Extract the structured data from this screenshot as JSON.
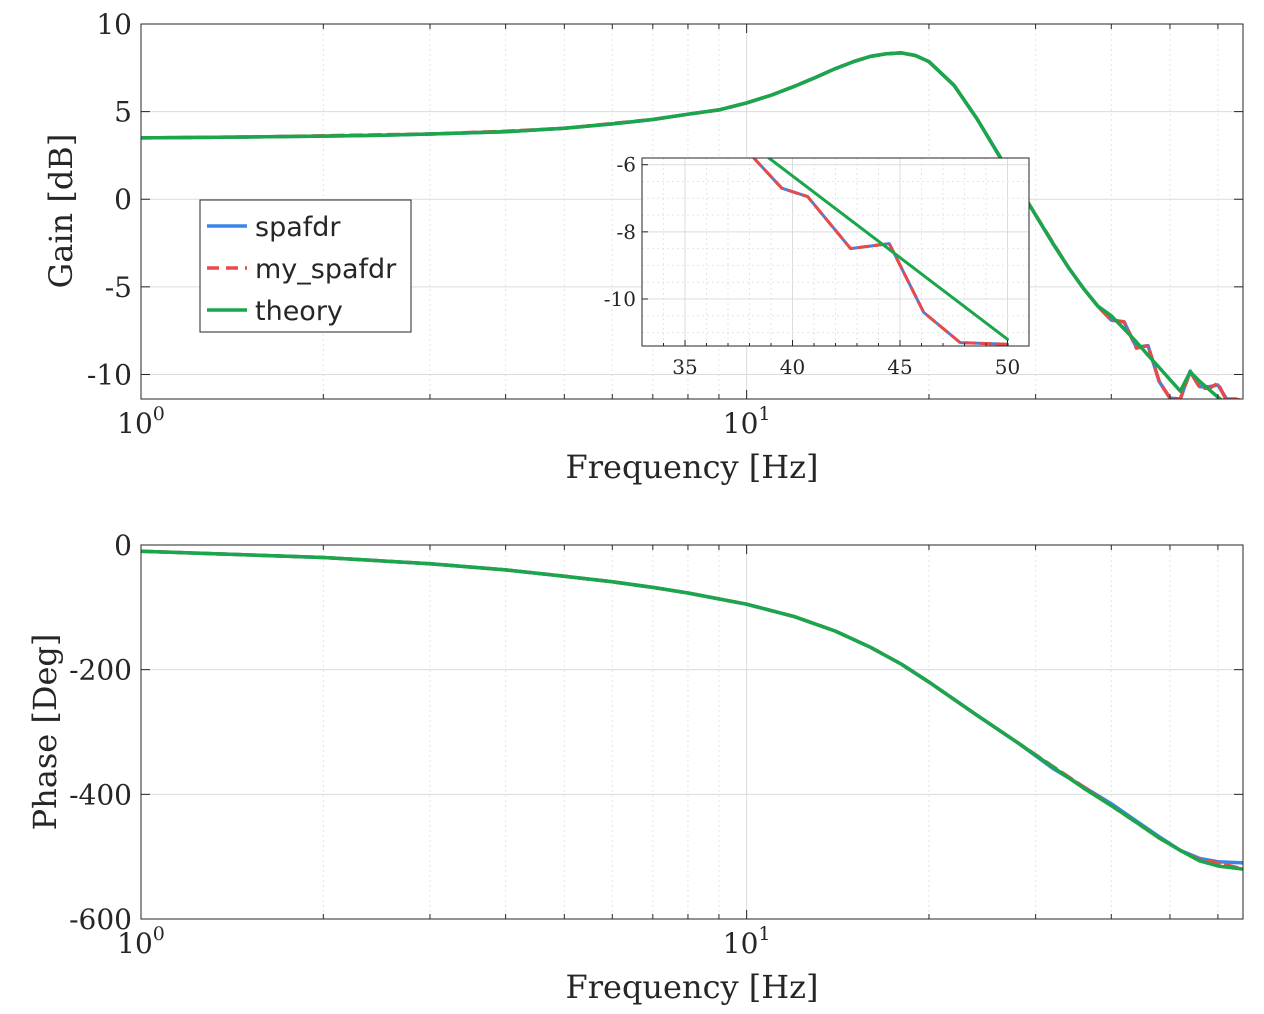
{
  "chart_data": [
    {
      "type": "line",
      "xlabel": "Frequency [Hz]",
      "ylabel": "Gain [dB]",
      "xscale": "log",
      "xlim": [
        1,
        66
      ],
      "ylim": [
        -11.4,
        10
      ],
      "xticks": [
        1,
        10
      ],
      "xtick_labels": [
        "10^0",
        "10^1"
      ],
      "yticks": [
        10,
        5,
        0,
        -5,
        -10
      ],
      "ytick_labels": [
        "10",
        "5",
        "0",
        "-5",
        "-10"
      ],
      "grid": true,
      "legend_position": "middle-left",
      "series": [
        {
          "name": "spafdr",
          "color": "#3a86e8",
          "style": "solid",
          "x": [
            1,
            1.5,
            2,
            2.5,
            3,
            4,
            5,
            6,
            7,
            8,
            9,
            10,
            11,
            12,
            13,
            14,
            15,
            16,
            17,
            18,
            19,
            20,
            22,
            24,
            26,
            28,
            30,
            32,
            34,
            36,
            38,
            40,
            42,
            44,
            46,
            48,
            50,
            52,
            54,
            56,
            58,
            60,
            62,
            64,
            66
          ],
          "y": [
            3.5,
            3.55,
            3.6,
            3.65,
            3.72,
            3.85,
            4.05,
            4.3,
            4.55,
            4.85,
            5.1,
            5.5,
            5.95,
            6.45,
            6.95,
            7.45,
            7.85,
            8.15,
            8.3,
            8.35,
            8.2,
            7.85,
            6.5,
            4.6,
            2.6,
            0.8,
            -0.9,
            -2.5,
            -3.9,
            -5.1,
            -6.1,
            -6.9,
            -7.0,
            -8.45,
            -8.35,
            -10.4,
            -11.35,
            -11.4,
            -9.8,
            -10.7,
            -10.7,
            -10.6,
            -11.4,
            -11.4,
            -11.5
          ]
        },
        {
          "name": "my_spafdr",
          "color": "#e84a4a",
          "style": "dashed",
          "x": [
            1,
            1.5,
            2,
            2.5,
            3,
            4,
            5,
            6,
            7,
            8,
            9,
            10,
            11,
            12,
            13,
            14,
            15,
            16,
            17,
            18,
            19,
            20,
            22,
            24,
            26,
            28,
            30,
            32,
            34,
            36,
            38,
            40,
            42,
            44,
            46,
            48,
            50,
            52,
            54,
            56,
            58,
            60,
            62,
            64,
            66
          ],
          "y": [
            3.5,
            3.55,
            3.62,
            3.68,
            3.72,
            3.88,
            4.05,
            4.32,
            4.55,
            4.85,
            5.1,
            5.5,
            5.95,
            6.45,
            6.95,
            7.45,
            7.85,
            8.15,
            8.3,
            8.35,
            8.2,
            7.85,
            6.5,
            4.6,
            2.6,
            0.8,
            -0.9,
            -2.45,
            -3.9,
            -5.1,
            -6.1,
            -6.9,
            -7.0,
            -8.5,
            -8.35,
            -10.4,
            -11.35,
            -11.4,
            -9.85,
            -10.75,
            -10.8,
            -10.5,
            -11.5,
            -11.4,
            -11.5
          ]
        },
        {
          "name": "theory",
          "color": "#1aa64b",
          "style": "solid",
          "x": [
            1,
            1.5,
            2,
            2.5,
            3,
            4,
            5,
            6,
            7,
            8,
            9,
            10,
            11,
            12,
            13,
            14,
            15,
            16,
            17,
            18,
            19,
            20,
            22,
            24,
            26,
            28,
            30,
            32,
            34,
            36,
            38,
            40,
            42,
            44,
            46,
            48,
            50,
            52,
            54,
            56,
            58,
            60,
            62,
            64,
            66
          ],
          "y": [
            3.5,
            3.55,
            3.6,
            3.65,
            3.72,
            3.85,
            4.05,
            4.3,
            4.55,
            4.85,
            5.1,
            5.5,
            5.95,
            6.45,
            6.95,
            7.45,
            7.85,
            8.15,
            8.3,
            8.35,
            8.2,
            7.85,
            6.5,
            4.6,
            2.6,
            0.8,
            -0.9,
            -2.5,
            -3.9,
            -5.1,
            -6.1,
            -6.65,
            -7.4,
            -8.15,
            -8.9,
            -9.6,
            -10.3,
            -10.95,
            -9.85,
            -10.4,
            -10.85,
            -11.3,
            -11.7,
            -12.1,
            -12.5
          ]
        }
      ],
      "inset": {
        "xscale": "linear",
        "xlim": [
          33,
          51
        ],
        "ylim": [
          -11.4,
          -5.8
        ],
        "xticks": [
          35,
          40,
          45,
          50
        ],
        "xtick_labels": [
          "35",
          "40",
          "45",
          "50"
        ],
        "yticks": [
          -6,
          -8,
          -10
        ],
        "ytick_labels": [
          "-6",
          "-8",
          "-10"
        ],
        "grid": true,
        "series": [
          {
            "name": "spafdr",
            "color": "#3a86e8",
            "style": "solid",
            "x": [
              38.2,
              39.5,
              40.7,
              42.7,
              44.5,
              46.1,
              47.8,
              50
            ],
            "y": [
              -5.8,
              -6.7,
              -6.95,
              -8.5,
              -8.35,
              -10.4,
              -11.3,
              -11.35
            ]
          },
          {
            "name": "my_spafdr",
            "color": "#e84a4a",
            "style": "dashed",
            "x": [
              38.2,
              39.5,
              40.7,
              42.7,
              44.5,
              46.1,
              47.8,
              50
            ],
            "y": [
              -5.8,
              -6.7,
              -6.95,
              -8.5,
              -8.35,
              -10.4,
              -11.3,
              -11.35
            ]
          },
          {
            "name": "theory",
            "color": "#1aa64b",
            "style": "solid",
            "x": [
              38.9,
              50
            ],
            "y": [
              -5.8,
              -11.2
            ]
          }
        ]
      }
    },
    {
      "type": "line",
      "xlabel": "Frequency [Hz]",
      "ylabel": "Phase [Deg]",
      "xscale": "log",
      "xlim": [
        1,
        66
      ],
      "ylim": [
        -600,
        0
      ],
      "xticks": [
        1,
        10
      ],
      "xtick_labels": [
        "10^0",
        "10^1"
      ],
      "yticks": [
        0,
        -200,
        -400,
        -600
      ],
      "ytick_labels": [
        "0",
        "-200",
        "-400",
        "-600"
      ],
      "grid": true,
      "series": [
        {
          "name": "spafdr",
          "color": "#3a86e8",
          "style": "solid",
          "x": [
            1,
            2,
            3,
            4,
            5,
            6,
            7,
            8,
            10,
            12,
            14,
            16,
            18,
            20,
            24,
            28,
            32,
            36,
            40,
            44,
            48,
            52,
            56,
            60,
            66
          ],
          "y": [
            -10,
            -20,
            -30,
            -40,
            -50,
            -59,
            -68,
            -77,
            -95,
            -115,
            -138,
            -164,
            -191,
            -220,
            -273,
            -317,
            -358,
            -388,
            -415,
            -443,
            -468,
            -490,
            -503,
            -508,
            -510
          ]
        },
        {
          "name": "my_spafdr",
          "color": "#e84a4a",
          "style": "dashed",
          "x": [
            1,
            2,
            3,
            4,
            5,
            6,
            7,
            8,
            10,
            12,
            14,
            16,
            18,
            20,
            24,
            28,
            32,
            36,
            40,
            44,
            48,
            52,
            56,
            60,
            66
          ],
          "y": [
            -10,
            -20,
            -30,
            -40,
            -50,
            -59,
            -68,
            -77,
            -95,
            -115,
            -138,
            -164,
            -191,
            -220,
            -273,
            -317,
            -355,
            -388,
            -418,
            -445,
            -470,
            -490,
            -505,
            -510,
            -520
          ]
        },
        {
          "name": "theory",
          "color": "#1aa64b",
          "style": "solid",
          "x": [
            1,
            2,
            3,
            4,
            5,
            6,
            7,
            8,
            10,
            12,
            14,
            16,
            18,
            20,
            24,
            28,
            32,
            36,
            40,
            44,
            48,
            52,
            56,
            60,
            66
          ],
          "y": [
            -10,
            -20,
            -30,
            -40,
            -50,
            -59,
            -68,
            -77,
            -95,
            -115,
            -138,
            -164,
            -191,
            -220,
            -273,
            -317,
            -356,
            -390,
            -418,
            -445,
            -470,
            -490,
            -507,
            -515,
            -520
          ]
        }
      ]
    }
  ],
  "legend": {
    "entries": [
      {
        "label": "spafdr",
        "color": "#3a86e8",
        "style": "solid"
      },
      {
        "label": "my_spafdr",
        "color": "#e84a4a",
        "style": "dashed"
      },
      {
        "label": "theory",
        "color": "#1aa64b",
        "style": "solid"
      }
    ]
  }
}
